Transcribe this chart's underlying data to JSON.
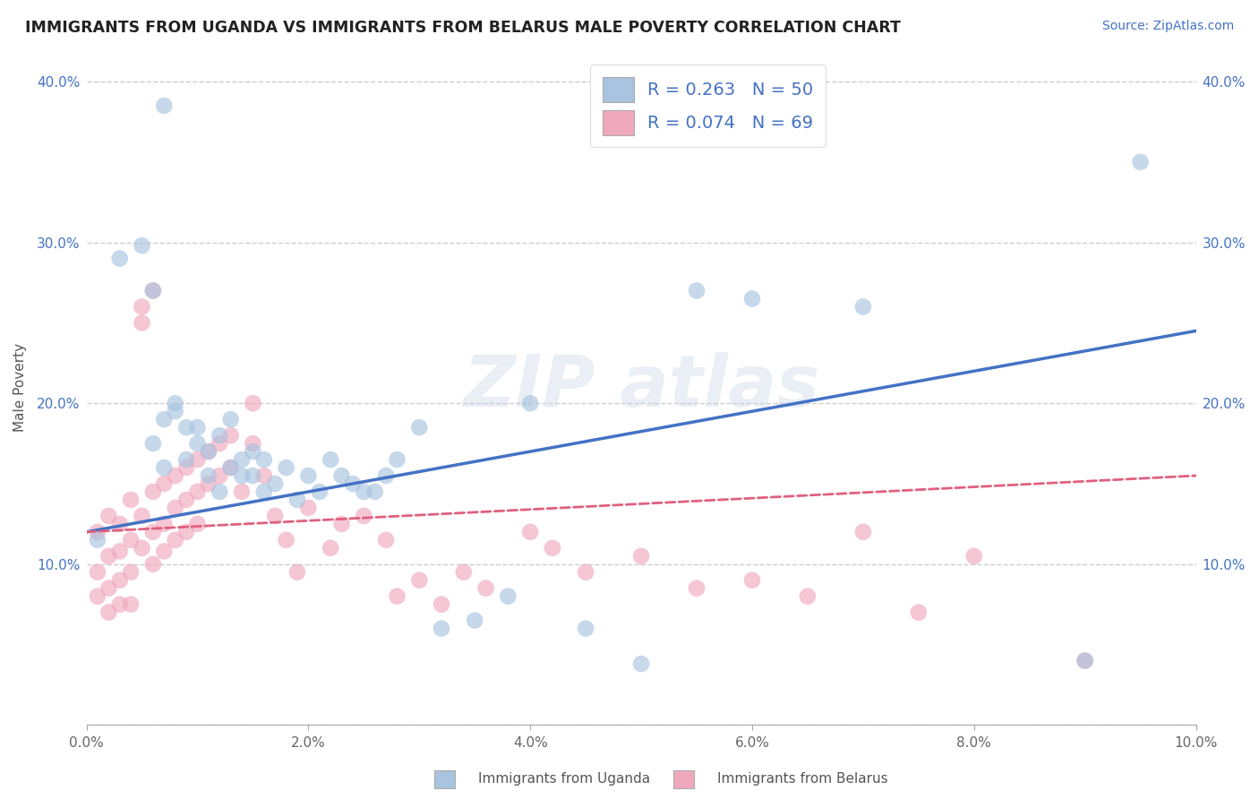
{
  "title": "IMMIGRANTS FROM UGANDA VS IMMIGRANTS FROM BELARUS MALE POVERTY CORRELATION CHART",
  "source": "Source: ZipAtlas.com",
  "ylabel": "Male Poverty",
  "xlim": [
    0.0,
    0.1
  ],
  "ylim": [
    0.0,
    0.42
  ],
  "x_ticks": [
    0.0,
    0.02,
    0.04,
    0.06,
    0.08,
    0.1
  ],
  "x_tick_labels": [
    "0.0%",
    "2.0%",
    "4.0%",
    "6.0%",
    "8.0%",
    "10.0%"
  ],
  "y_ticks": [
    0.0,
    0.1,
    0.2,
    0.3,
    0.4
  ],
  "y_tick_labels": [
    "",
    "10.0%",
    "20.0%",
    "30.0%",
    "40.0%"
  ],
  "legend_r1": "R = 0.263",
  "legend_n1": "N = 50",
  "legend_r2": "R = 0.074",
  "legend_n2": "N = 69",
  "color_uganda": "#a8c4e0",
  "color_belarus": "#f0a8bc",
  "line_color_uganda": "#4472c4",
  "line_color_belarus": "#e06080",
  "background_color": "#ffffff",
  "grid_color": "#c8c8c8",
  "uganda_x": [
    0.007,
    0.001,
    0.003,
    0.005,
    0.006,
    0.006,
    0.007,
    0.007,
    0.008,
    0.008,
    0.009,
    0.009,
    0.01,
    0.01,
    0.011,
    0.011,
    0.012,
    0.012,
    0.013,
    0.013,
    0.014,
    0.014,
    0.015,
    0.015,
    0.016,
    0.016,
    0.017,
    0.018,
    0.019,
    0.02,
    0.021,
    0.022,
    0.023,
    0.024,
    0.025,
    0.026,
    0.027,
    0.028,
    0.03,
    0.032,
    0.035,
    0.038,
    0.04,
    0.045,
    0.05,
    0.055,
    0.06,
    0.07,
    0.09,
    0.095
  ],
  "uganda_y": [
    0.385,
    0.115,
    0.29,
    0.298,
    0.27,
    0.175,
    0.16,
    0.19,
    0.2,
    0.195,
    0.185,
    0.165,
    0.175,
    0.185,
    0.17,
    0.155,
    0.18,
    0.145,
    0.16,
    0.19,
    0.155,
    0.165,
    0.155,
    0.17,
    0.145,
    0.165,
    0.15,
    0.16,
    0.14,
    0.155,
    0.145,
    0.165,
    0.155,
    0.15,
    0.145,
    0.145,
    0.155,
    0.165,
    0.185,
    0.06,
    0.065,
    0.08,
    0.2,
    0.06,
    0.038,
    0.27,
    0.265,
    0.26,
    0.04,
    0.35
  ],
  "belarus_x": [
    0.001,
    0.001,
    0.001,
    0.002,
    0.002,
    0.002,
    0.002,
    0.003,
    0.003,
    0.003,
    0.003,
    0.004,
    0.004,
    0.004,
    0.004,
    0.005,
    0.005,
    0.005,
    0.005,
    0.006,
    0.006,
    0.006,
    0.006,
    0.007,
    0.007,
    0.007,
    0.008,
    0.008,
    0.008,
    0.009,
    0.009,
    0.009,
    0.01,
    0.01,
    0.01,
    0.011,
    0.011,
    0.012,
    0.012,
    0.013,
    0.013,
    0.014,
    0.015,
    0.015,
    0.016,
    0.017,
    0.018,
    0.019,
    0.02,
    0.022,
    0.023,
    0.025,
    0.027,
    0.028,
    0.03,
    0.032,
    0.034,
    0.036,
    0.04,
    0.042,
    0.045,
    0.05,
    0.055,
    0.06,
    0.065,
    0.07,
    0.075,
    0.08,
    0.09
  ],
  "belarus_y": [
    0.12,
    0.095,
    0.08,
    0.13,
    0.105,
    0.085,
    0.07,
    0.125,
    0.108,
    0.09,
    0.075,
    0.14,
    0.115,
    0.095,
    0.075,
    0.26,
    0.25,
    0.13,
    0.11,
    0.27,
    0.145,
    0.12,
    0.1,
    0.15,
    0.125,
    0.108,
    0.155,
    0.135,
    0.115,
    0.16,
    0.14,
    0.12,
    0.165,
    0.145,
    0.125,
    0.17,
    0.15,
    0.175,
    0.155,
    0.18,
    0.16,
    0.145,
    0.2,
    0.175,
    0.155,
    0.13,
    0.115,
    0.095,
    0.135,
    0.11,
    0.125,
    0.13,
    0.115,
    0.08,
    0.09,
    0.075,
    0.095,
    0.085,
    0.12,
    0.11,
    0.095,
    0.105,
    0.085,
    0.09,
    0.08,
    0.12,
    0.07,
    0.105,
    0.04
  ]
}
